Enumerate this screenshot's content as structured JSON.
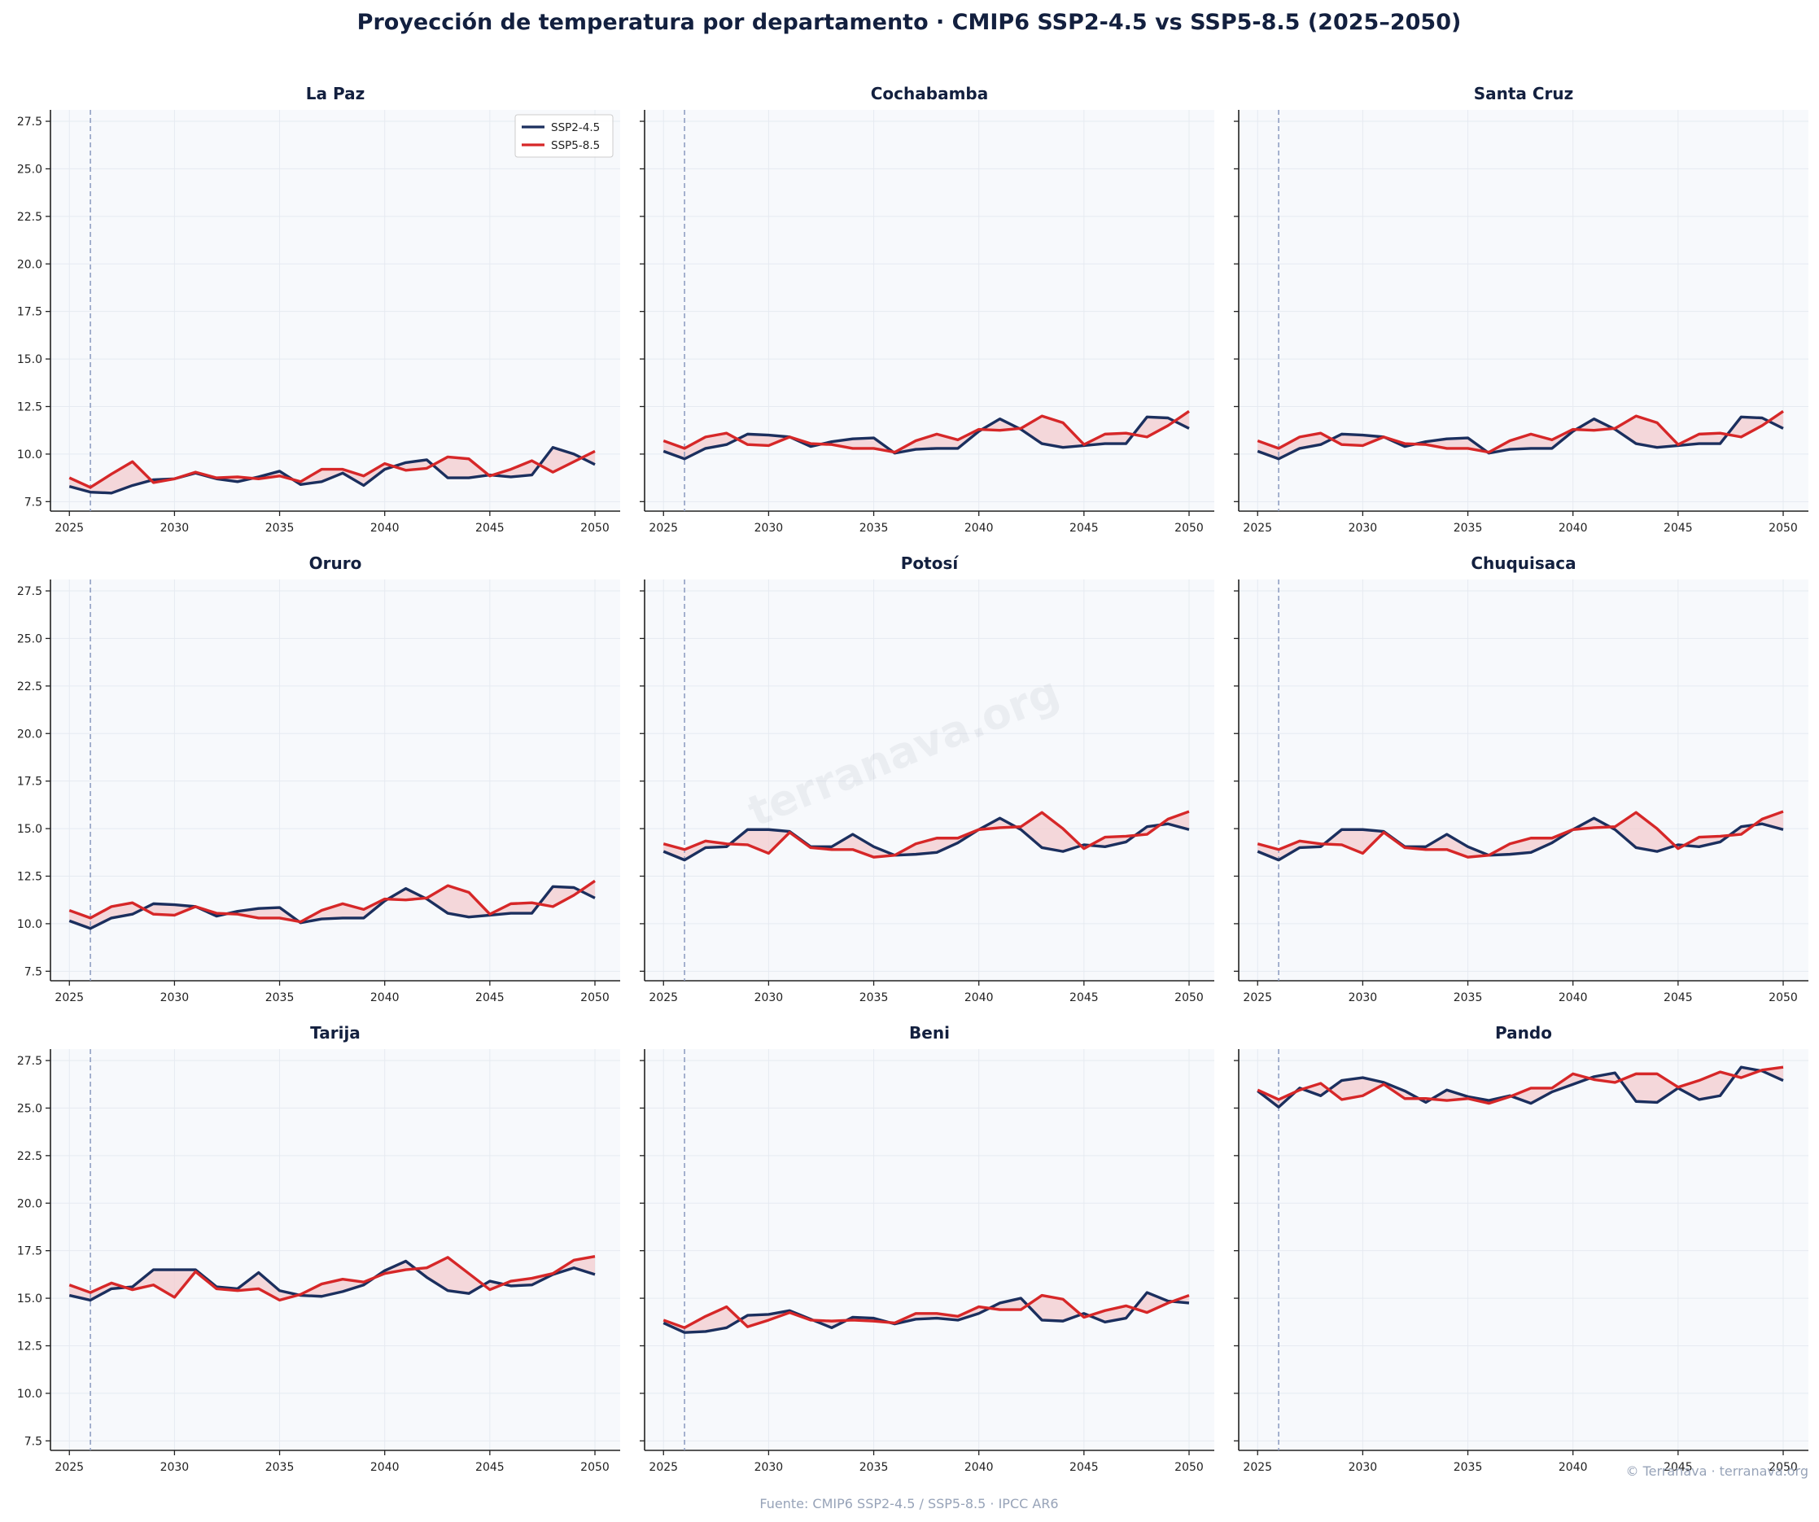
{
  "title": "Proyección de temperatura por departamento · CMIP6 SSP2-4.5 vs SSP5-8.5 (2025–2050)",
  "footer": {
    "source": "Fuente: CMIP6 SSP2-4.5 / SSP5-8.5 · IPCC AR6",
    "credit": "© Terranava · terranava.org",
    "watermark": "terranava.org"
  },
  "colors": {
    "ssp245": "#1b2f5e",
    "ssp585": "#d62728",
    "fill": "#f2c9cc",
    "panel_bg": "#f7f9fc",
    "grid": "#e6eaf1",
    "ref_line": "#8a9abf"
  },
  "chart_data": {
    "type": "line",
    "layout": "3x3 small multiples",
    "x": [
      2025,
      2026,
      2027,
      2028,
      2029,
      2030,
      2031,
      2032,
      2033,
      2034,
      2035,
      2036,
      2037,
      2038,
      2039,
      2040,
      2041,
      2042,
      2043,
      2044,
      2045,
      2046,
      2047,
      2048,
      2049,
      2050
    ],
    "xticks": [
      2025,
      2030,
      2035,
      2040,
      2045,
      2050
    ],
    "xlim": [
      2024.1,
      2051.2
    ],
    "ylim": [
      7.0,
      28.1
    ],
    "yticks": [
      7.5,
      10.0,
      12.5,
      15.0,
      17.5,
      20.0,
      22.5,
      25.0,
      27.5
    ],
    "reference_line_x": 2026,
    "grid": true,
    "fill_between_series": true,
    "legend": {
      "placement": "upper-right of first panel",
      "entries": [
        "SSP2-4.5",
        "SSP5-8.5"
      ]
    },
    "panels": [
      {
        "name": "La Paz",
        "series": [
          {
            "name": "SSP2-4.5",
            "values": [
              8.3,
              8.0,
              7.95,
              8.35,
              8.65,
              8.7,
              9.0,
              8.7,
              8.55,
              8.8,
              9.1,
              8.4,
              8.55,
              9.0,
              8.35,
              9.2,
              9.55,
              9.7,
              8.75,
              8.75,
              8.9,
              8.8,
              8.9,
              10.35,
              10.0,
              9.45
            ]
          },
          {
            "name": "SSP5-8.5",
            "values": [
              8.75,
              8.25,
              8.95,
              9.6,
              8.5,
              8.7,
              9.05,
              8.75,
              8.8,
              8.7,
              8.85,
              8.55,
              9.2,
              9.2,
              8.85,
              9.5,
              9.15,
              9.25,
              9.85,
              9.75,
              8.85,
              9.2,
              9.65,
              9.05,
              9.6,
              10.15
            ]
          }
        ]
      },
      {
        "name": "Cochabamba",
        "series": [
          {
            "name": "SSP2-4.5",
            "values": [
              10.15,
              9.75,
              10.3,
              10.5,
              11.05,
              11.0,
              10.9,
              10.4,
              10.65,
              10.8,
              10.85,
              10.05,
              10.25,
              10.3,
              10.3,
              11.2,
              11.85,
              11.3,
              10.55,
              10.35,
              10.45,
              10.55,
              10.55,
              11.95,
              11.9,
              11.35
            ]
          },
          {
            "name": "SSP5-8.5",
            "values": [
              10.7,
              10.3,
              10.9,
              11.1,
              10.5,
              10.45,
              10.9,
              10.55,
              10.5,
              10.3,
              10.3,
              10.1,
              10.7,
              11.05,
              10.75,
              11.3,
              11.25,
              11.35,
              12.0,
              11.65,
              10.5,
              11.05,
              11.1,
              10.9,
              11.5,
              12.25
            ]
          }
        ]
      },
      {
        "name": "Santa Cruz",
        "series": [
          {
            "name": "SSP2-4.5",
            "values": [
              10.15,
              9.75,
              10.3,
              10.5,
              11.05,
              11.0,
              10.9,
              10.4,
              10.65,
              10.8,
              10.85,
              10.05,
              10.25,
              10.3,
              10.3,
              11.2,
              11.85,
              11.3,
              10.55,
              10.35,
              10.45,
              10.55,
              10.55,
              11.95,
              11.9,
              11.35
            ]
          },
          {
            "name": "SSP5-8.5",
            "values": [
              10.7,
              10.3,
              10.9,
              11.1,
              10.5,
              10.45,
              10.9,
              10.55,
              10.5,
              10.3,
              10.3,
              10.1,
              10.7,
              11.05,
              10.75,
              11.3,
              11.25,
              11.35,
              12.0,
              11.65,
              10.5,
              11.05,
              11.1,
              10.9,
              11.5,
              12.25
            ]
          }
        ]
      },
      {
        "name": "Oruro",
        "series": [
          {
            "name": "SSP2-4.5",
            "values": [
              10.15,
              9.75,
              10.3,
              10.5,
              11.05,
              11.0,
              10.9,
              10.4,
              10.65,
              10.8,
              10.85,
              10.05,
              10.25,
              10.3,
              10.3,
              11.2,
              11.85,
              11.3,
              10.55,
              10.35,
              10.45,
              10.55,
              10.55,
              11.95,
              11.9,
              11.35
            ]
          },
          {
            "name": "SSP5-8.5",
            "values": [
              10.7,
              10.3,
              10.9,
              11.1,
              10.5,
              10.45,
              10.9,
              10.55,
              10.5,
              10.3,
              10.3,
              10.1,
              10.7,
              11.05,
              10.75,
              11.3,
              11.25,
              11.35,
              12.0,
              11.65,
              10.5,
              11.05,
              11.1,
              10.9,
              11.5,
              12.25
            ]
          }
        ]
      },
      {
        "name": "Potosí",
        "series": [
          {
            "name": "SSP2-4.5",
            "values": [
              13.8,
              13.35,
              14.0,
              14.05,
              14.95,
              14.95,
              14.85,
              14.05,
              14.05,
              14.7,
              14.05,
              13.6,
              13.65,
              13.75,
              14.25,
              14.95,
              15.55,
              14.95,
              14.0,
              13.8,
              14.15,
              14.05,
              14.3,
              15.1,
              15.25,
              14.95
            ]
          },
          {
            "name": "SSP5-8.5",
            "values": [
              14.2,
              13.9,
              14.35,
              14.2,
              14.15,
              13.7,
              14.8,
              14.0,
              13.9,
              13.9,
              13.5,
              13.6,
              14.2,
              14.5,
              14.5,
              14.95,
              15.05,
              15.1,
              15.85,
              15.0,
              13.95,
              14.55,
              14.6,
              14.7,
              15.5,
              15.9
            ]
          }
        ]
      },
      {
        "name": "Chuquisaca",
        "series": [
          {
            "name": "SSP2-4.5",
            "values": [
              13.8,
              13.35,
              14.0,
              14.05,
              14.95,
              14.95,
              14.85,
              14.05,
              14.05,
              14.7,
              14.05,
              13.6,
              13.65,
              13.75,
              14.25,
              14.95,
              15.55,
              14.95,
              14.0,
              13.8,
              14.15,
              14.05,
              14.3,
              15.1,
              15.25,
              14.95
            ]
          },
          {
            "name": "SSP5-8.5",
            "values": [
              14.2,
              13.9,
              14.35,
              14.2,
              14.15,
              13.7,
              14.8,
              14.0,
              13.9,
              13.9,
              13.5,
              13.6,
              14.2,
              14.5,
              14.5,
              14.95,
              15.05,
              15.1,
              15.85,
              15.0,
              13.95,
              14.55,
              14.6,
              14.7,
              15.5,
              15.9
            ]
          }
        ]
      },
      {
        "name": "Tarija",
        "series": [
          {
            "name": "SSP2-4.5",
            "values": [
              15.15,
              14.9,
              15.5,
              15.6,
              16.5,
              16.5,
              16.5,
              15.6,
              15.5,
              16.35,
              15.4,
              15.15,
              15.1,
              15.35,
              15.7,
              16.45,
              16.95,
              16.1,
              15.4,
              15.25,
              15.9,
              15.65,
              15.7,
              16.25,
              16.6,
              16.25
            ]
          },
          {
            "name": "SSP5-8.5",
            "values": [
              15.7,
              15.3,
              15.8,
              15.45,
              15.7,
              15.05,
              16.4,
              15.5,
              15.4,
              15.5,
              14.9,
              15.2,
              15.75,
              16.0,
              15.85,
              16.3,
              16.5,
              16.6,
              17.15,
              16.3,
              15.45,
              15.9,
              16.05,
              16.3,
              17.0,
              17.2
            ]
          }
        ]
      },
      {
        "name": "Beni",
        "series": [
          {
            "name": "SSP2-4.5",
            "values": [
              13.7,
              13.2,
              13.25,
              13.45,
              14.1,
              14.15,
              14.35,
              13.9,
              13.45,
              14.0,
              13.95,
              13.65,
              13.9,
              13.95,
              13.85,
              14.2,
              14.75,
              15.0,
              13.85,
              13.8,
              14.2,
              13.75,
              13.95,
              15.3,
              14.85,
              14.75
            ]
          },
          {
            "name": "SSP5-8.5",
            "values": [
              13.85,
              13.45,
              14.05,
              14.55,
              13.5,
              13.85,
              14.25,
              13.85,
              13.8,
              13.85,
              13.8,
              13.7,
              14.2,
              14.2,
              14.05,
              14.55,
              14.4,
              14.4,
              15.15,
              14.95,
              14.0,
              14.35,
              14.6,
              14.25,
              14.75,
              15.15
            ]
          }
        ]
      },
      {
        "name": "Pando",
        "series": [
          {
            "name": "SSP2-4.5",
            "values": [
              25.9,
              25.05,
              26.05,
              25.65,
              26.45,
              26.6,
              26.35,
              25.9,
              25.3,
              25.95,
              25.6,
              25.4,
              25.65,
              25.25,
              25.85,
              26.25,
              26.65,
              26.85,
              25.35,
              25.3,
              26.05,
              25.45,
              25.65,
              27.15,
              26.95,
              26.45
            ]
          },
          {
            "name": "SSP5-8.5",
            "values": [
              25.95,
              25.45,
              25.95,
              26.3,
              25.45,
              25.65,
              26.25,
              25.5,
              25.5,
              25.4,
              25.5,
              25.25,
              25.6,
              26.05,
              26.05,
              26.8,
              26.5,
              26.35,
              26.8,
              26.8,
              26.1,
              26.45,
              26.9,
              26.6,
              27.0,
              27.15
            ]
          }
        ]
      }
    ]
  }
}
